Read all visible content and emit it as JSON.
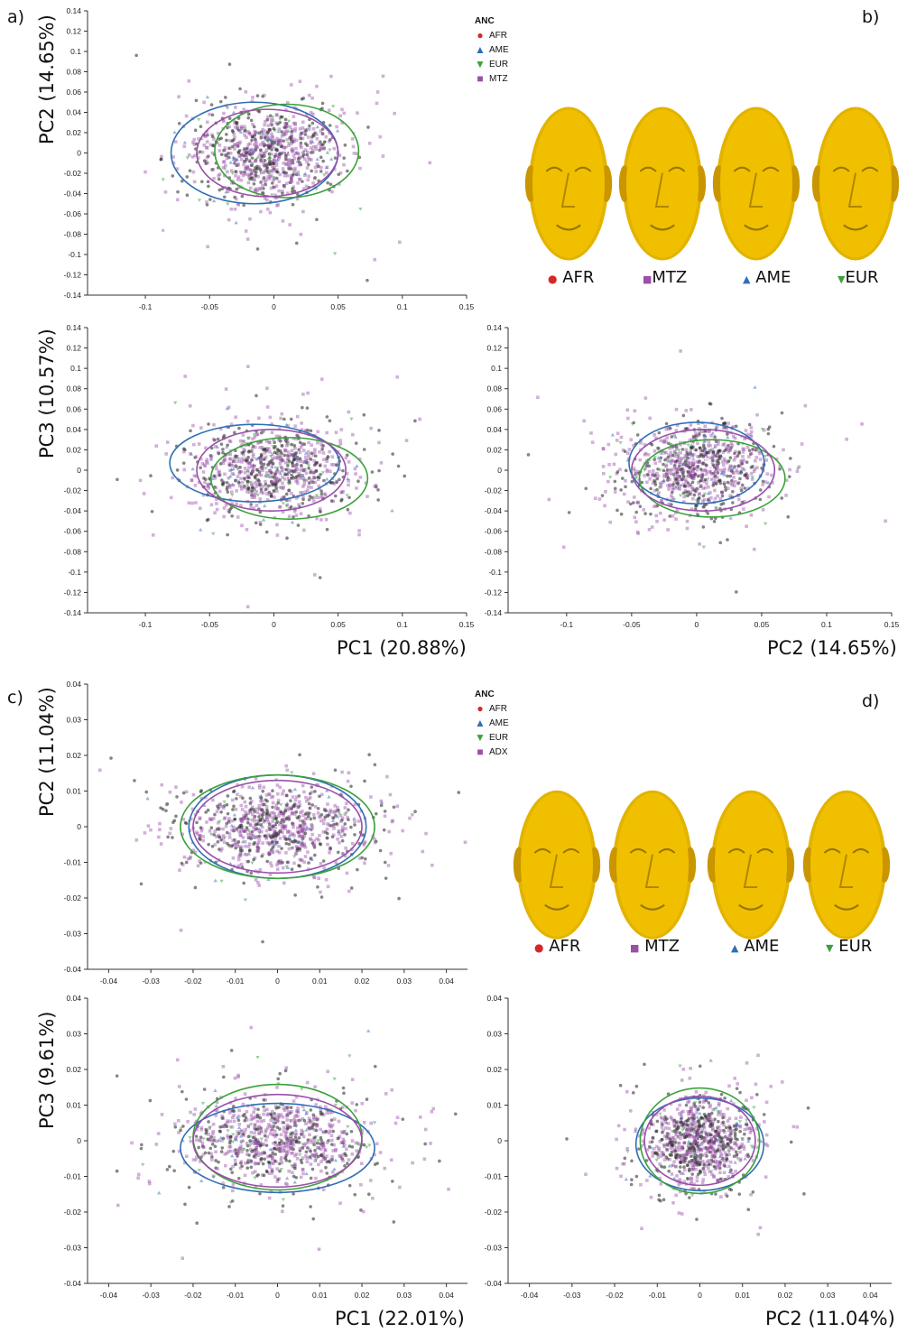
{
  "panels": {
    "a": "a)",
    "b": "b)",
    "c": "c)",
    "d": "d)"
  },
  "colors": {
    "AFR": "#d62728",
    "AME": "#2f6fb5",
    "EUR": "#3aa23a",
    "MTZ": "#9a4fa8",
    "ADX": "#9a4fa8",
    "face": "#e2b300",
    "dark": "#333333"
  },
  "legend_top": {
    "title": "ANC",
    "items": [
      "AFR",
      "AME",
      "EUR",
      "MTZ"
    ]
  },
  "legend_bottom": {
    "title": "ANC",
    "items": [
      "AFR",
      "AME",
      "EUR",
      "ADX"
    ]
  },
  "face_legend_top": [
    "AFR",
    "MTZ",
    "AME",
    "EUR"
  ],
  "face_legend_bottom": [
    "AFR",
    "MTZ",
    "AME",
    "EUR"
  ],
  "axis_titles": {
    "a_pc2": "PC2 (14.65%)",
    "a_pc3": "PC3 (10.57%)",
    "a_pc1_x": "PC1 (20.88%)",
    "a_pc2_x": "PC2 (14.65%)",
    "c_pc2": "PC2 (11.04%)",
    "c_pc3": "PC3 (9.61%)",
    "c_pc1_x": "PC1 (22.01%)",
    "c_pc2_x": "PC2 (11.04%)"
  },
  "chart_data": [
    {
      "type": "scatter",
      "panel": "a",
      "name": "PC1 vs PC2",
      "xlabel": "",
      "ylabel": "PC2 (14.65%)",
      "xlim": [
        -0.145,
        0.15
      ],
      "ylim": [
        -0.14,
        0.14
      ],
      "xticks": [
        "-0.1",
        "-0.05",
        "0",
        "0.05",
        "0.1",
        "0.15"
      ],
      "yticks": [
        "0.14",
        "0.12",
        "0.1",
        "0.08",
        "0.06",
        "0.04",
        "0.02",
        "0",
        "-0.02",
        "-0.04",
        "-0.06",
        "-0.08",
        "-0.1",
        "-0.12",
        "-0.14"
      ],
      "cloud": {
        "cx": -0.005,
        "cy": 0.0,
        "sx": 0.03,
        "sy": 0.022
      },
      "ellipses": [
        {
          "group": "AME",
          "cx": -0.015,
          "cy": 0.0,
          "rx": 0.065,
          "ry": 0.05
        },
        {
          "group": "EUR",
          "cx": 0.01,
          "cy": 0.002,
          "rx": 0.056,
          "ry": 0.046
        },
        {
          "group": "MTZ",
          "cx": -0.005,
          "cy": 0.0,
          "rx": 0.055,
          "ry": 0.043
        }
      ],
      "centers": [
        [
          -0.015,
          -0.003
        ],
        [
          0.0,
          0.001
        ],
        [
          0.01,
          0.002
        ]
      ],
      "grid": false
    },
    {
      "type": "scatter",
      "panel": "a",
      "name": "PC1 vs PC3",
      "xlabel": "PC1 (20.88%)",
      "ylabel": "PC3 (10.57%)",
      "xlim": [
        -0.145,
        0.15
      ],
      "ylim": [
        -0.14,
        0.14
      ],
      "xticks": [
        "-0.1",
        "-0.05",
        "0",
        "0.05",
        "0.1",
        "0.15"
      ],
      "yticks": [
        "0.14",
        "0.12",
        "0.1",
        "0.08",
        "0.06",
        "0.04",
        "0.02",
        "0",
        "-0.02",
        "-0.04",
        "-0.06",
        "-0.08",
        "-0.1",
        "-0.12",
        "-0.14"
      ],
      "cloud": {
        "cx": 0.0,
        "cy": 0.0,
        "sx": 0.032,
        "sy": 0.022
      },
      "ellipses": [
        {
          "group": "AME",
          "cx": -0.015,
          "cy": 0.007,
          "rx": 0.066,
          "ry": 0.038
        },
        {
          "group": "EUR",
          "cx": 0.012,
          "cy": -0.008,
          "rx": 0.061,
          "ry": 0.04
        },
        {
          "group": "MTZ",
          "cx": -0.002,
          "cy": 0.0,
          "rx": 0.058,
          "ry": 0.04
        }
      ],
      "centers": [
        [
          -0.015,
          0.008
        ],
        [
          0.0,
          0.001
        ],
        [
          0.012,
          -0.006
        ]
      ],
      "grid": false
    },
    {
      "type": "scatter",
      "panel": "a",
      "name": "PC2 vs PC3",
      "xlabel": "PC2 (14.65%)",
      "ylabel": "",
      "xlim": [
        -0.145,
        0.15
      ],
      "ylim": [
        -0.14,
        0.14
      ],
      "xticks": [
        "-0.1",
        "-0.05",
        "0",
        "0.05",
        "0.1",
        "0.15"
      ],
      "yticks": [
        "0.14",
        "0.12",
        "0.1",
        "0.08",
        "0.06",
        "0.04",
        "0.02",
        "0",
        "-0.02",
        "-0.04",
        "-0.06",
        "-0.08",
        "-0.1",
        "-0.12",
        "-0.14"
      ],
      "cloud": {
        "cx": 0.0,
        "cy": 0.0,
        "sx": 0.027,
        "sy": 0.022
      },
      "ellipses": [
        {
          "group": "AME",
          "cx": 0.0,
          "cy": 0.007,
          "rx": 0.052,
          "ry": 0.04
        },
        {
          "group": "EUR",
          "cx": 0.012,
          "cy": -0.008,
          "rx": 0.056,
          "ry": 0.038
        },
        {
          "group": "MTZ",
          "cx": 0.005,
          "cy": 0.0,
          "rx": 0.055,
          "ry": 0.04
        }
      ],
      "centers": [
        [
          0.007,
          0.011
        ],
        [
          0.012,
          0.001
        ],
        [
          0.01,
          -0.006
        ]
      ],
      "grid": false
    },
    {
      "type": "scatter",
      "panel": "c",
      "name": "PC1 vs PC2",
      "xlabel": "",
      "ylabel": "PC2 (11.04%)",
      "xlim": [
        -0.045,
        0.045
      ],
      "ylim": [
        -0.04,
        0.04
      ],
      "xticks": [
        "-0.04",
        "-0.03",
        "-0.02",
        "-0.01",
        "0",
        "0.01",
        "0.02",
        "0.03",
        "0.04"
      ],
      "yticks": [
        "0.04",
        "0.03",
        "0.02",
        "0.01",
        "0",
        "-0.01",
        "-0.02",
        "-0.03",
        "-0.04"
      ],
      "cloud": {
        "cx": 0.0,
        "cy": 0.0,
        "sx": 0.011,
        "sy": 0.0058
      },
      "ellipses": [
        {
          "group": "AME",
          "cx": 0.0,
          "cy": 0.0,
          "rx": 0.021,
          "ry": 0.0145
        },
        {
          "group": "EUR",
          "cx": 0.0,
          "cy": 0.0,
          "rx": 0.023,
          "ry": 0.0145
        },
        {
          "group": "ADX",
          "cx": 0.0,
          "cy": 0.0,
          "rx": 0.02,
          "ry": 0.013
        }
      ],
      "centers": [
        [
          0.0,
          0.0
        ]
      ],
      "grid": false
    },
    {
      "type": "scatter",
      "panel": "c",
      "name": "PC1 vs PC3",
      "xlabel": "PC1 (22.01%)",
      "ylabel": "PC3 (9.61%)",
      "xlim": [
        -0.045,
        0.045
      ],
      "ylim": [
        -0.04,
        0.04
      ],
      "xticks": [
        "-0.04",
        "-0.03",
        "-0.02",
        "-0.01",
        "0",
        "0.01",
        "0.02",
        "0.03",
        "0.04"
      ],
      "yticks": [
        "0.04",
        "0.03",
        "0.02",
        "0.01",
        "0",
        "-0.01",
        "-0.02",
        "-0.03",
        "-0.04"
      ],
      "cloud": {
        "cx": 0.0,
        "cy": 0.0,
        "sx": 0.011,
        "sy": 0.0062
      },
      "ellipses": [
        {
          "group": "AME",
          "cx": 0.0,
          "cy": -0.002,
          "rx": 0.023,
          "ry": 0.0125
        },
        {
          "group": "EUR",
          "cx": 0.0,
          "cy": 0.001,
          "rx": 0.02,
          "ry": 0.0148
        },
        {
          "group": "ADX",
          "cx": 0.0,
          "cy": 0.0,
          "rx": 0.02,
          "ry": 0.013
        }
      ],
      "centers": [
        [
          0.0,
          0.0
        ]
      ],
      "grid": false
    },
    {
      "type": "scatter",
      "panel": "c",
      "name": "PC2 vs PC3",
      "xlabel": "PC2 (11.04%)",
      "ylabel": "",
      "xlim": [
        -0.045,
        0.045
      ],
      "ylim": [
        -0.04,
        0.04
      ],
      "xticks": [
        "-0.04",
        "-0.03",
        "-0.02",
        "-0.01",
        "0",
        "0.01",
        "0.02",
        "0.03",
        "0.04"
      ],
      "yticks": [
        "0.04",
        "0.03",
        "0.02",
        "0.01",
        "0",
        "-0.01",
        "-0.02",
        "-0.03",
        "-0.04"
      ],
      "cloud": {
        "cx": 0.0,
        "cy": 0.0,
        "sx": 0.006,
        "sy": 0.0062
      },
      "ellipses": [
        {
          "group": "AME",
          "cx": 0.0,
          "cy": -0.001,
          "rx": 0.015,
          "ry": 0.013
        },
        {
          "group": "EUR",
          "cx": 0.0,
          "cy": 0.0,
          "rx": 0.014,
          "ry": 0.0148
        },
        {
          "group": "ADX",
          "cx": 0.0,
          "cy": 0.0,
          "rx": 0.013,
          "ry": 0.0125
        }
      ],
      "centers": [
        [
          0.0,
          0.0
        ]
      ],
      "grid": false
    }
  ]
}
